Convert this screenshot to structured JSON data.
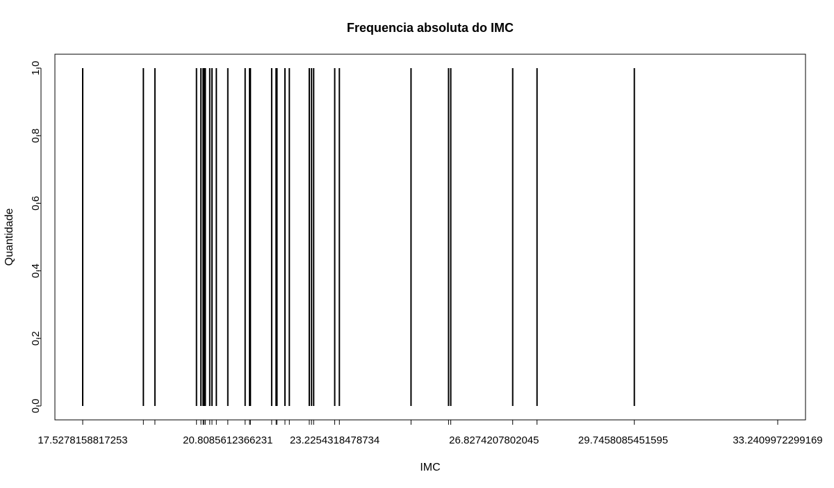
{
  "chart_data": {
    "type": "bar",
    "title": "Frequencia absoluta do IMC",
    "xlabel": "IMC",
    "ylabel": "Quantidade",
    "ylim": [
      0,
      1
    ],
    "y_ticks": [
      "0.0",
      "0.2",
      "0.4",
      "0.6",
      "0.8",
      "1.0"
    ],
    "x_tick_labels": [
      "17.5278158817253",
      "20.8085612366231",
      "23.2254318478734",
      "26.8274207802045",
      "29.7458085451595",
      "33.2409972299169"
    ],
    "x": [
      17.5278158817253,
      18.9,
      19.16,
      20.1,
      20.2,
      20.25,
      20.27,
      20.3,
      20.4,
      20.45,
      20.55,
      20.8085612366231,
      21.2,
      21.3,
      21.32,
      21.8,
      21.9,
      21.92,
      22.1,
      22.2,
      22.65,
      22.7,
      22.75,
      23.2254318478734,
      23.33,
      24.95,
      25.8,
      25.85,
      27.25,
      27.8,
      30.0
    ],
    "values": [
      1,
      1,
      1,
      1,
      1,
      1,
      1,
      1,
      1,
      1,
      1,
      1,
      1,
      1,
      1,
      1,
      1,
      1,
      1,
      1,
      1,
      1,
      1,
      1,
      1,
      1,
      1,
      1,
      1,
      1,
      1
    ],
    "grid": false,
    "legend": "none"
  }
}
